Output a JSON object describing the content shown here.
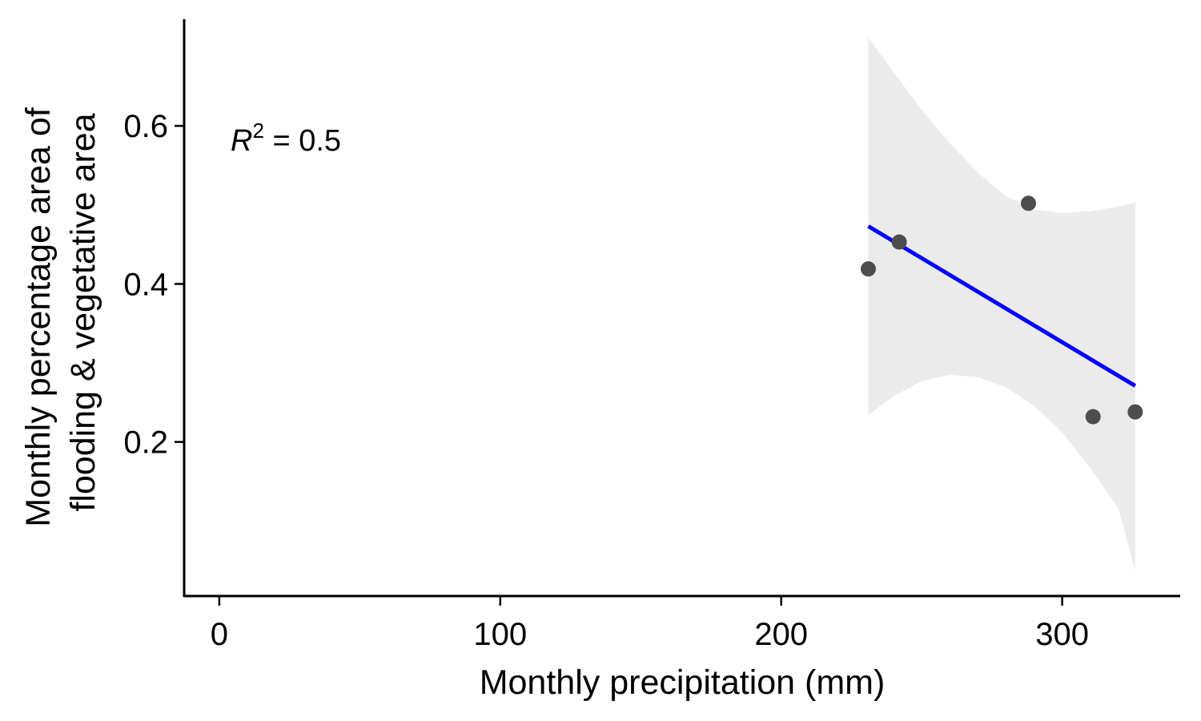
{
  "chart_data": {
    "type": "scatter",
    "title": "",
    "xlabel": "Monthly precipitation (mm)",
    "ylabel_lines": [
      "Monthly percentage area of",
      "flooding & vegetative area"
    ],
    "xlim": [
      -12.5,
      342
    ],
    "ylim": [
      0.005,
      0.735
    ],
    "x_ticks": [
      0,
      100,
      200,
      300
    ],
    "x_tick_labels": [
      "0",
      "100",
      "200",
      "300"
    ],
    "y_ticks": [
      0.2,
      0.4,
      0.6
    ],
    "y_tick_labels": [
      "0.2",
      "0.4",
      "0.6"
    ],
    "grid": false,
    "points": [
      {
        "x": 231,
        "y": 0.419
      },
      {
        "x": 242,
        "y": 0.453
      },
      {
        "x": 288,
        "y": 0.502
      },
      {
        "x": 311,
        "y": 0.232
      },
      {
        "x": 326,
        "y": 0.238
      }
    ],
    "fit_line": {
      "x": [
        231,
        326
      ],
      "y": [
        0.473,
        0.271
      ],
      "color": "#0000ff"
    },
    "confidence_band": {
      "x": [
        231,
        240,
        250,
        260,
        270,
        280,
        290,
        300,
        310,
        320,
        326
      ],
      "lower": [
        0.234,
        0.258,
        0.277,
        0.285,
        0.282,
        0.269,
        0.246,
        0.212,
        0.167,
        0.116,
        0.037
      ],
      "upper": [
        0.712,
        0.668,
        0.62,
        0.578,
        0.541,
        0.511,
        0.494,
        0.49,
        0.492,
        0.498,
        0.503
      ],
      "color": "#ebebeb"
    },
    "annotation": {
      "symbol": "R",
      "superscript": "2",
      "text": " = 0.5"
    },
    "colors": {
      "points": "#4d4d4d",
      "axis": "#000000"
    }
  }
}
